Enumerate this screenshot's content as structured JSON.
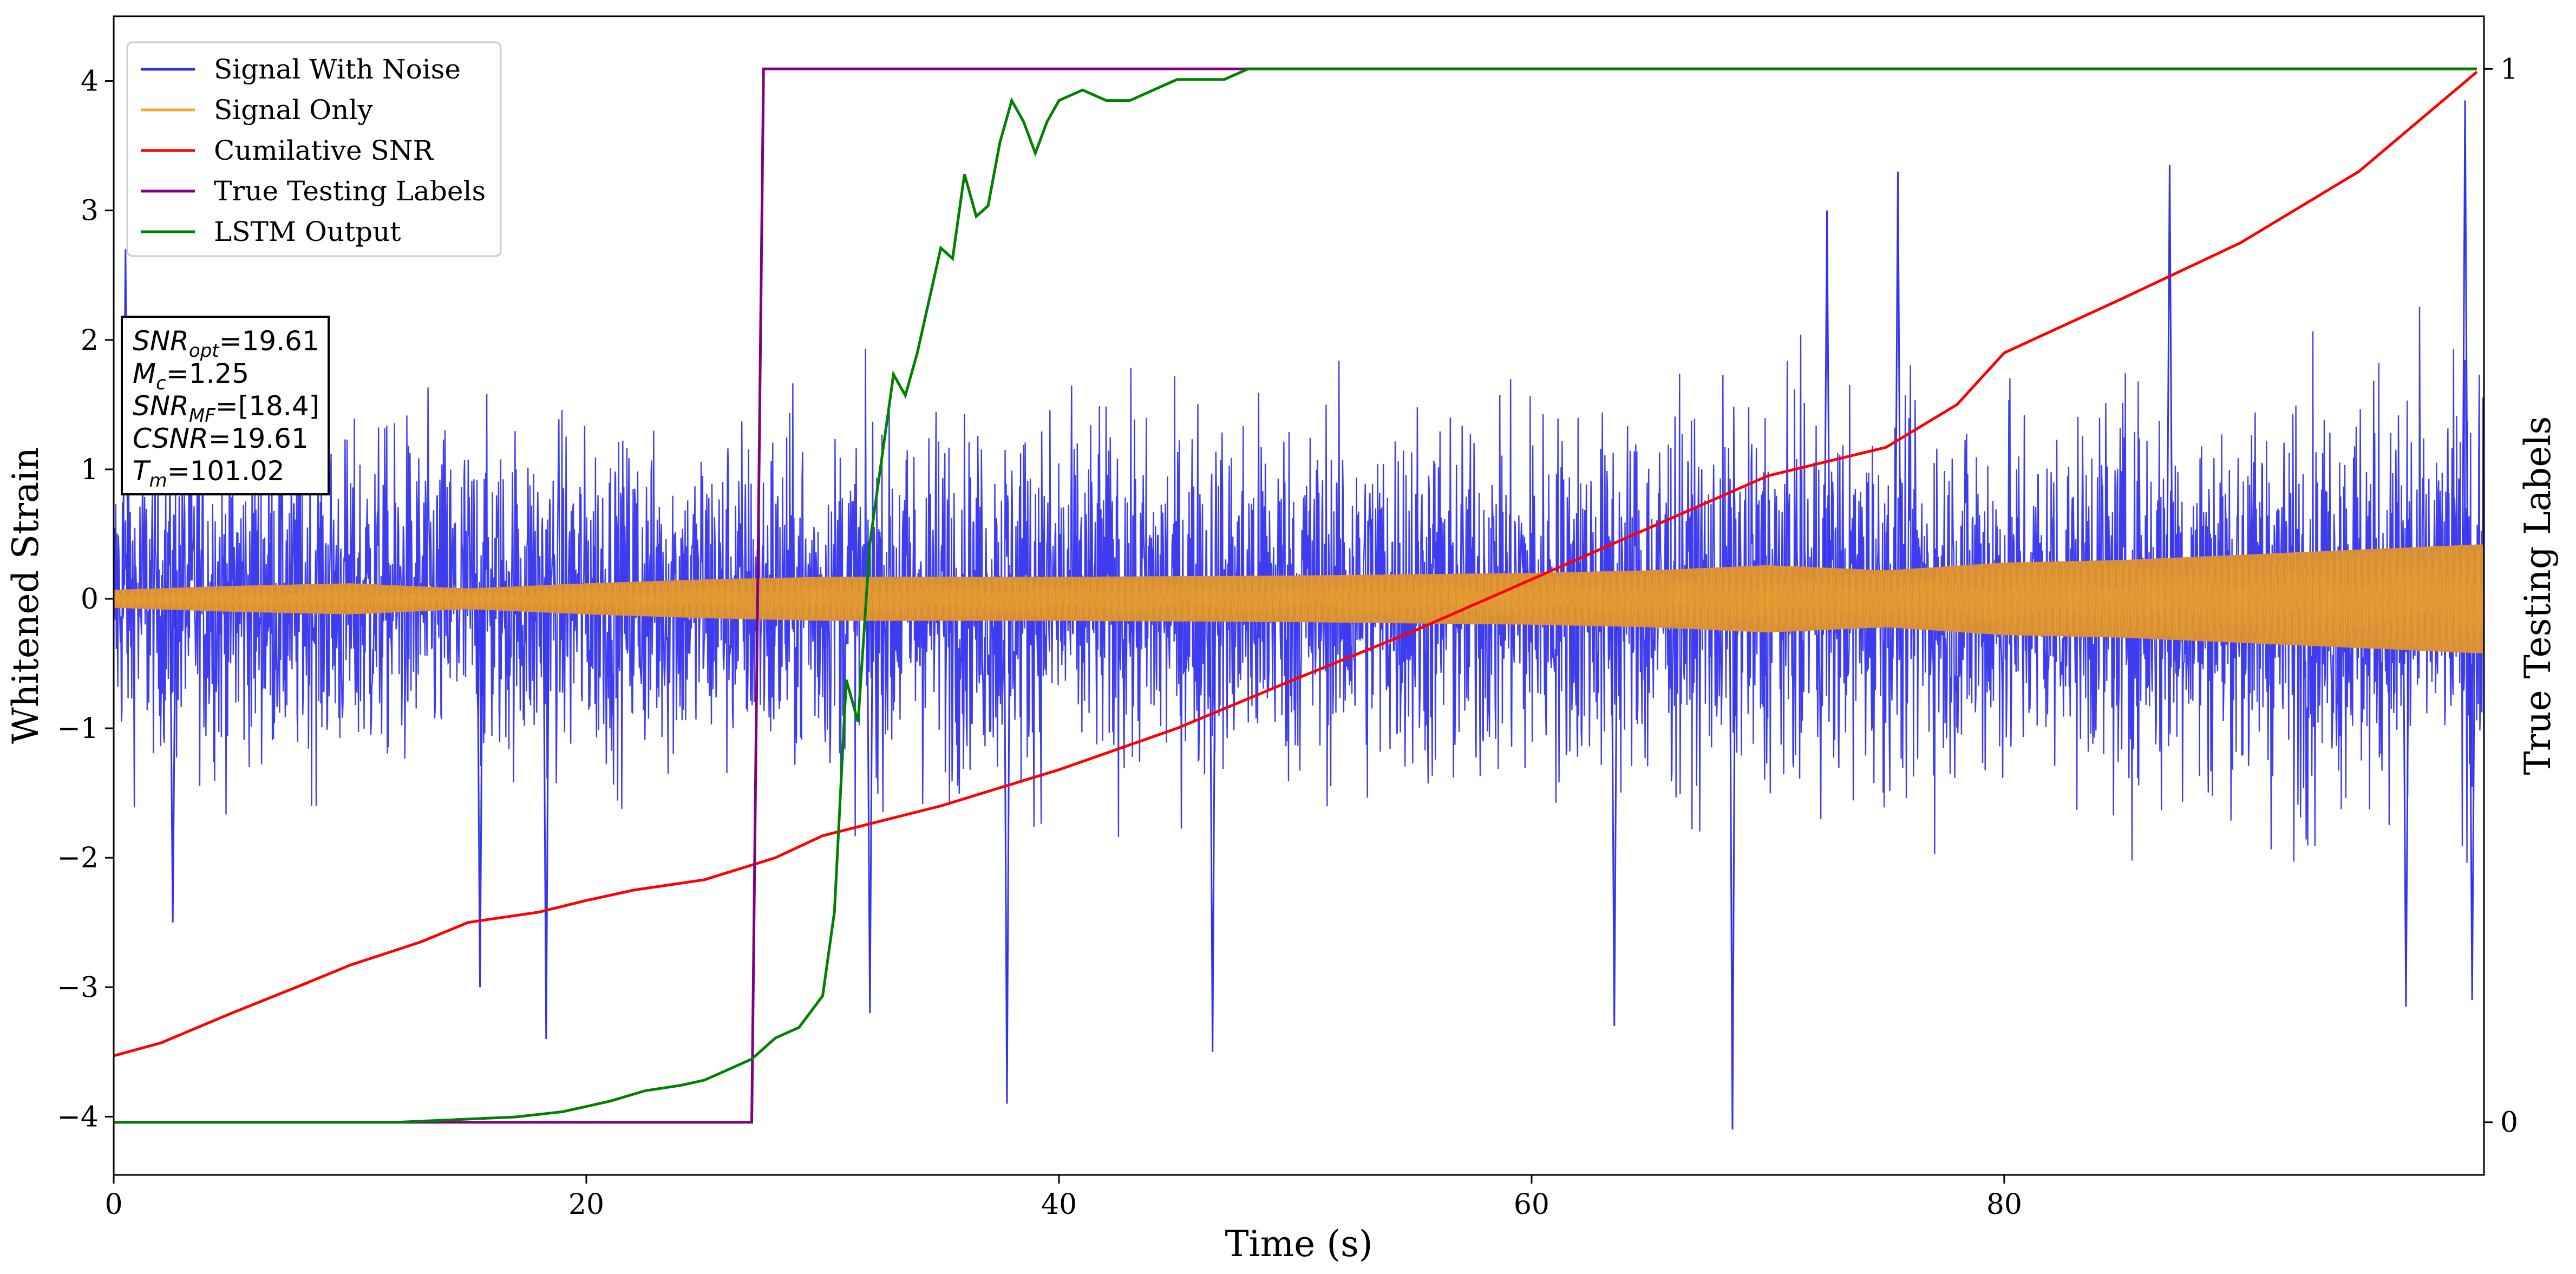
{
  "chart_data": {
    "type": "line",
    "title": "",
    "xlabel": "Time (s)",
    "ylabel": "Whitened Strain",
    "y2label": "True Testing Labels",
    "xlim": [
      0,
      100.3
    ],
    "ylim": [
      -4.45,
      4.5
    ],
    "y2lim": [
      -0.05,
      1.05
    ],
    "xticks": [
      0,
      20,
      40,
      60,
      80
    ],
    "yticks": [
      -4,
      -3,
      -2,
      -1,
      0,
      1,
      2,
      3,
      4
    ],
    "y2ticks": [
      0,
      1
    ],
    "xtick_labels": [
      "0",
      "20",
      "40",
      "60",
      "80"
    ],
    "ytick_labels": [
      "−4",
      "−3",
      "−2",
      "−1",
      "0",
      "1",
      "2",
      "3",
      "4"
    ],
    "y2tick_labels": [
      "0",
      "1"
    ],
    "grid": false,
    "legend_position": "top-left",
    "colors": {
      "signal_with_noise": "#3333ee",
      "signal_only": "#f0a830",
      "cumulative_snr": "#ff0000",
      "true_labels": "#800080",
      "lstm_output": "#008000",
      "overlap_band": "#d88f35"
    },
    "series": [
      {
        "name": "Signal With Noise",
        "axis": "left",
        "description_values": "dense noisy oscillation",
        "envelope_x": [
          0,
          10,
          20,
          30,
          40,
          50,
          60,
          70,
          80,
          90,
          100
        ],
        "envelope_typical_abs": [
          1.4,
          1.5,
          1.5,
          1.5,
          1.6,
          1.6,
          1.6,
          1.6,
          1.6,
          1.7,
          1.8
        ],
        "spikes": [
          [
            0.5,
            2.7
          ],
          [
            2.5,
            -2.5
          ],
          [
            15.5,
            -3.0
          ],
          [
            18.3,
            -3.4
          ],
          [
            32.0,
            -3.2
          ],
          [
            37.8,
            -3.9
          ],
          [
            46.5,
            -3.5
          ],
          [
            63.5,
            -3.3
          ],
          [
            68.5,
            -4.1
          ],
          [
            72.5,
            3.0
          ],
          [
            75.5,
            3.3
          ],
          [
            87.0,
            3.35
          ],
          [
            97.0,
            -3.15
          ],
          [
            99.5,
            3.85
          ],
          [
            99.8,
            -3.1
          ]
        ]
      },
      {
        "name": "Signal Only",
        "axis": "left",
        "x": [
          0,
          5,
          10,
          15,
          20,
          25,
          30,
          40,
          50,
          60,
          65,
          70,
          75,
          80,
          85,
          90,
          95,
          100
        ],
        "amplitude": [
          0.07,
          0.1,
          0.12,
          0.08,
          0.12,
          0.15,
          0.17,
          0.17,
          0.18,
          0.2,
          0.22,
          0.26,
          0.22,
          0.28,
          0.3,
          0.34,
          0.38,
          0.42
        ]
      },
      {
        "name": "Cumilative SNR",
        "axis": "left",
        "x": [
          0,
          2,
          5,
          8,
          10,
          13,
          15,
          18,
          20,
          22,
          25,
          28,
          30,
          35,
          40,
          45,
          50,
          55,
          60,
          65,
          70,
          75,
          78,
          80,
          85,
          90,
          95,
          100
        ],
        "values": [
          -3.53,
          -3.43,
          -3.2,
          -2.98,
          -2.83,
          -2.65,
          -2.5,
          -2.42,
          -2.33,
          -2.25,
          -2.17,
          -2.0,
          -1.83,
          -1.6,
          -1.32,
          -1.0,
          -0.62,
          -0.25,
          0.15,
          0.55,
          0.95,
          1.17,
          1.5,
          1.9,
          2.32,
          2.75,
          3.3,
          4.07
        ]
      },
      {
        "name": "True Testing Labels",
        "axis": "right",
        "x": [
          0,
          27.0,
          27.5,
          100
        ],
        "values": [
          0,
          0,
          1,
          1
        ]
      },
      {
        "name": "LSTM Output",
        "axis": "right",
        "x": [
          0,
          12,
          17,
          19,
          21,
          22.5,
          24,
          25,
          26,
          27,
          28,
          29,
          30,
          30.5,
          31,
          31.5,
          32,
          33,
          33.5,
          34,
          35,
          35.5,
          36,
          36.5,
          37,
          37.5,
          38,
          38.5,
          39,
          39.5,
          40,
          41,
          42,
          43,
          44,
          45,
          46,
          47,
          48,
          50,
          52,
          55,
          57,
          100
        ],
        "values": [
          0,
          0,
          0.005,
          0.01,
          0.02,
          0.03,
          0.035,
          0.04,
          0.05,
          0.06,
          0.08,
          0.09,
          0.12,
          0.2,
          0.42,
          0.38,
          0.55,
          0.71,
          0.69,
          0.73,
          0.83,
          0.82,
          0.9,
          0.86,
          0.87,
          0.93,
          0.97,
          0.95,
          0.92,
          0.95,
          0.97,
          0.98,
          0.97,
          0.97,
          0.98,
          0.99,
          0.99,
          0.99,
          1.0,
          1.0,
          1.0,
          1.0,
          1.0,
          1.0
        ]
      }
    ],
    "annotation": {
      "lines": [
        {
          "base": "SNR",
          "sub": "opt",
          "text": "=19.61"
        },
        {
          "base": "M",
          "sub": "c",
          "text": "=1.25"
        },
        {
          "base": "SNR",
          "sub": "MF",
          "text": "=[18.4]"
        },
        {
          "base": "CSNR",
          "sub": "",
          "text": "=19.61"
        },
        {
          "base": "T",
          "sub": "m",
          "text": "=101.02"
        }
      ]
    }
  }
}
